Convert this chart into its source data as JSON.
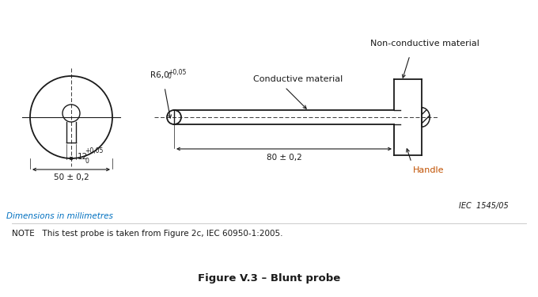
{
  "bg_color": "#ffffff",
  "line_color": "#1a1a1a",
  "cyan_color": "#0070C0",
  "orange_color": "#C05000",
  "title": "Figure V.3 – Blunt probe",
  "note": "NOTE   This test probe is taken from Figure 2c, IEC 60950-1:2005.",
  "dims_label": "Dimensions in millimetres",
  "iec_ref": "IEC  1545/05",
  "label_conductive": "Conductive material",
  "label_nonconductive": "Non-conductive material",
  "label_handle": "Handle",
  "label_r6": "R6,0",
  "label_12": "12",
  "label_50": "50 ± 0,2",
  "label_80": "80 ± 0,2"
}
